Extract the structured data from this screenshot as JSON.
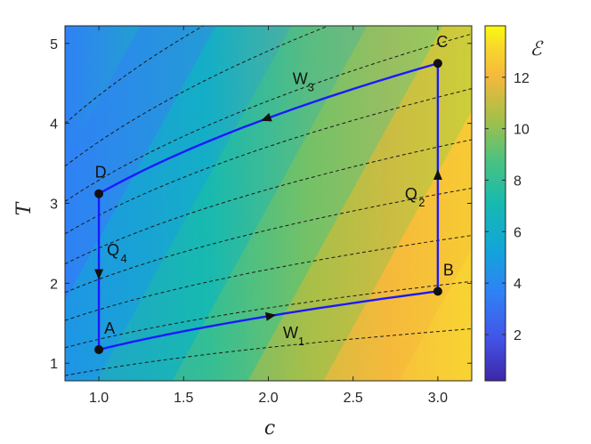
{
  "chart_data": {
    "type": "line",
    "xlabel": "c",
    "ylabel": "T",
    "xlim": [
      0.8,
      3.2
    ],
    "ylim": [
      0.78,
      5.22
    ],
    "x_ticks": [
      "1.0",
      "1.5",
      "2.0",
      "2.5",
      "3.0"
    ],
    "y_ticks": [
      "1",
      "2",
      "3",
      "4",
      "5"
    ],
    "colorbar": {
      "label": "ℰ",
      "range": [
        0.2,
        14
      ],
      "ticks": [
        "2",
        "4",
        "6",
        "8",
        "10",
        "12"
      ],
      "colormap": "parula"
    },
    "cycle": {
      "color": "#1a1aff",
      "points": [
        {
          "label": "A",
          "x": 1.0,
          "y": 1.17
        },
        {
          "label": "B",
          "x": 3.0,
          "y": 1.9
        },
        {
          "label": "C",
          "x": 3.0,
          "y": 4.75
        },
        {
          "label": "D",
          "x": 1.0,
          "y": 3.12
        }
      ],
      "segments": [
        {
          "label": "W",
          "subscript": "1",
          "from": "A",
          "to": "B"
        },
        {
          "label": "Q",
          "subscript": "2",
          "from": "B",
          "to": "C"
        },
        {
          "label": "W",
          "subscript": "3",
          "from": "C",
          "to": "D"
        },
        {
          "label": "Q",
          "subscript": "4",
          "from": "D",
          "to": "A"
        }
      ]
    },
    "contour_levels_T_at_c1": [
      0.92,
      1.3,
      1.67,
      2.05,
      2.44,
      2.85,
      3.29,
      3.77,
      4.35
    ]
  }
}
